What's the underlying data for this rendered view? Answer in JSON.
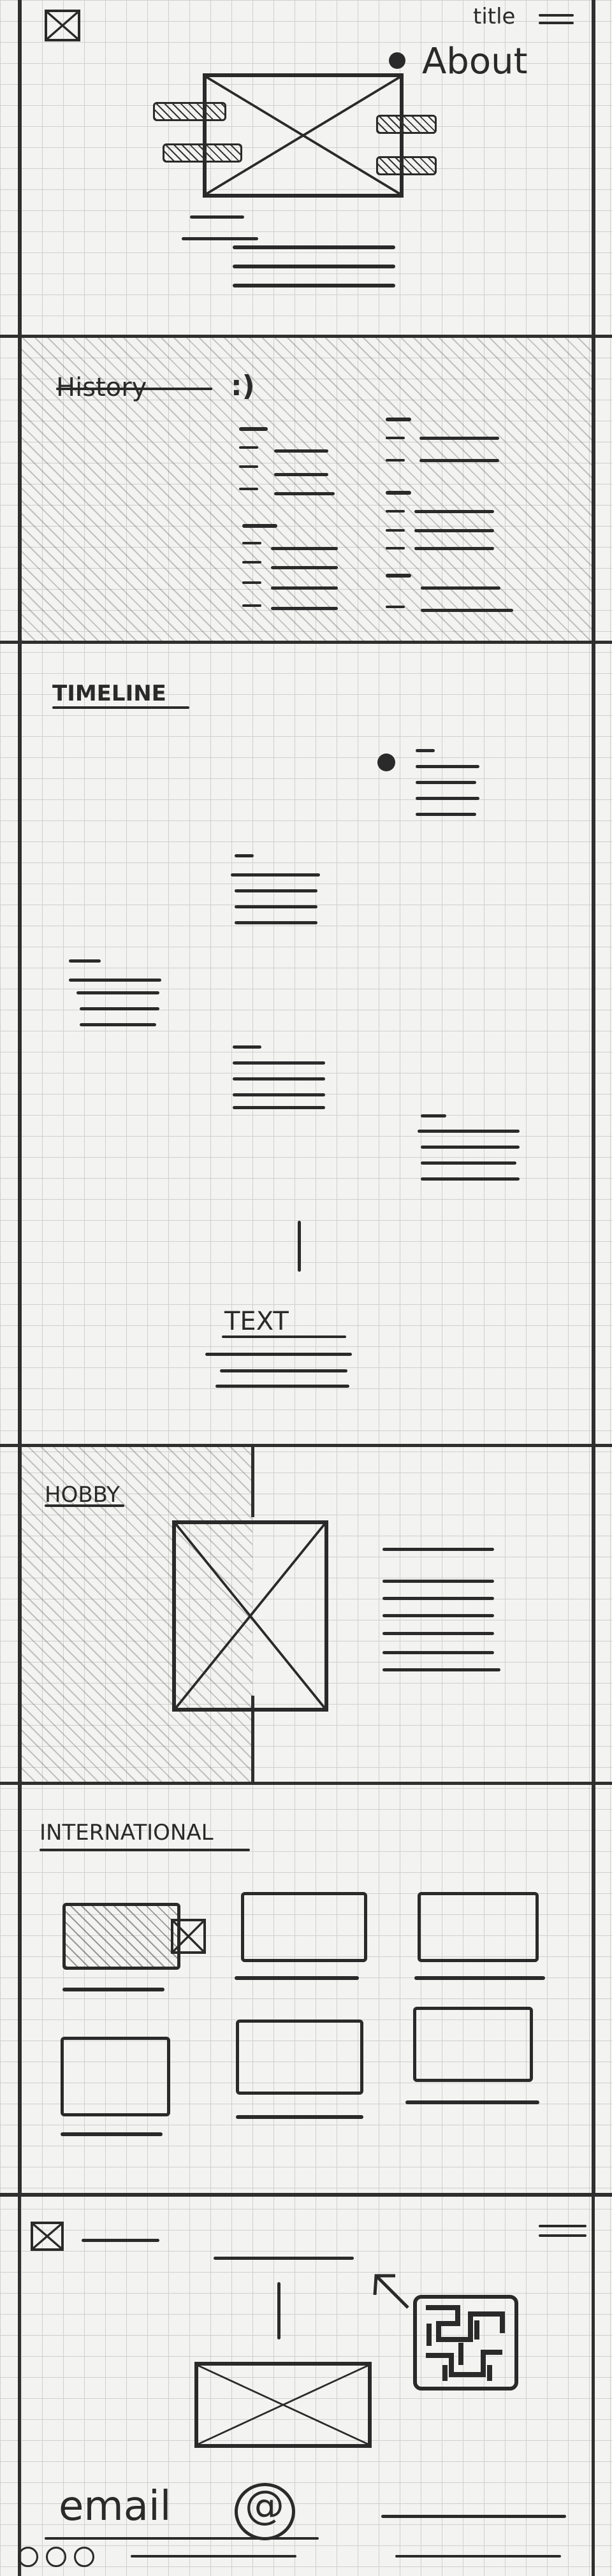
{
  "header": {
    "title_text": "title",
    "about_label": "About"
  },
  "history": {
    "heading": "History",
    "emoticon": ":)"
  },
  "timeline": {
    "heading": "TIMELINE",
    "text_label": "TEXT"
  },
  "hobby": {
    "heading": "HOBBY"
  },
  "international": {
    "heading": "INTERNATIONAL"
  },
  "footer": {
    "email_label": "email",
    "at_symbol": "@"
  }
}
